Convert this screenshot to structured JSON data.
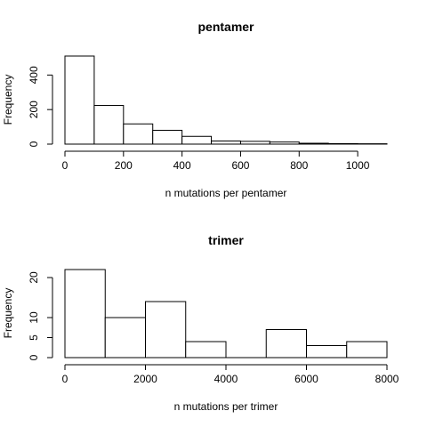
{
  "chart_data": [
    {
      "type": "bar",
      "title": "pentamer",
      "xlabel": "n mutations per pentamer",
      "ylabel": "Frequency",
      "bin_edges": [
        0,
        100,
        200,
        300,
        400,
        500,
        600,
        700,
        800,
        900,
        1000,
        1100
      ],
      "values": [
        510,
        224,
        117,
        80,
        45,
        18,
        16,
        12,
        5,
        3,
        2
      ],
      "xticks": [
        0,
        200,
        400,
        600,
        800,
        1000
      ],
      "yticks": [
        0,
        200,
        400
      ],
      "xlim": [
        0,
        1100
      ],
      "ylim": [
        0,
        510
      ]
    },
    {
      "type": "bar",
      "title": "trimer",
      "xlabel": "n mutations per trimer",
      "ylabel": "Frequency",
      "bin_edges": [
        0,
        1000,
        2000,
        3000,
        4000,
        5000,
        6000,
        7000,
        8000
      ],
      "values": [
        22,
        10,
        14,
        4,
        0,
        7,
        3,
        4
      ],
      "xticks": [
        0,
        2000,
        4000,
        6000,
        8000
      ],
      "yticks": [
        0,
        5,
        10,
        20
      ],
      "xlim": [
        0,
        8000
      ],
      "ylim": [
        0,
        22
      ]
    }
  ]
}
